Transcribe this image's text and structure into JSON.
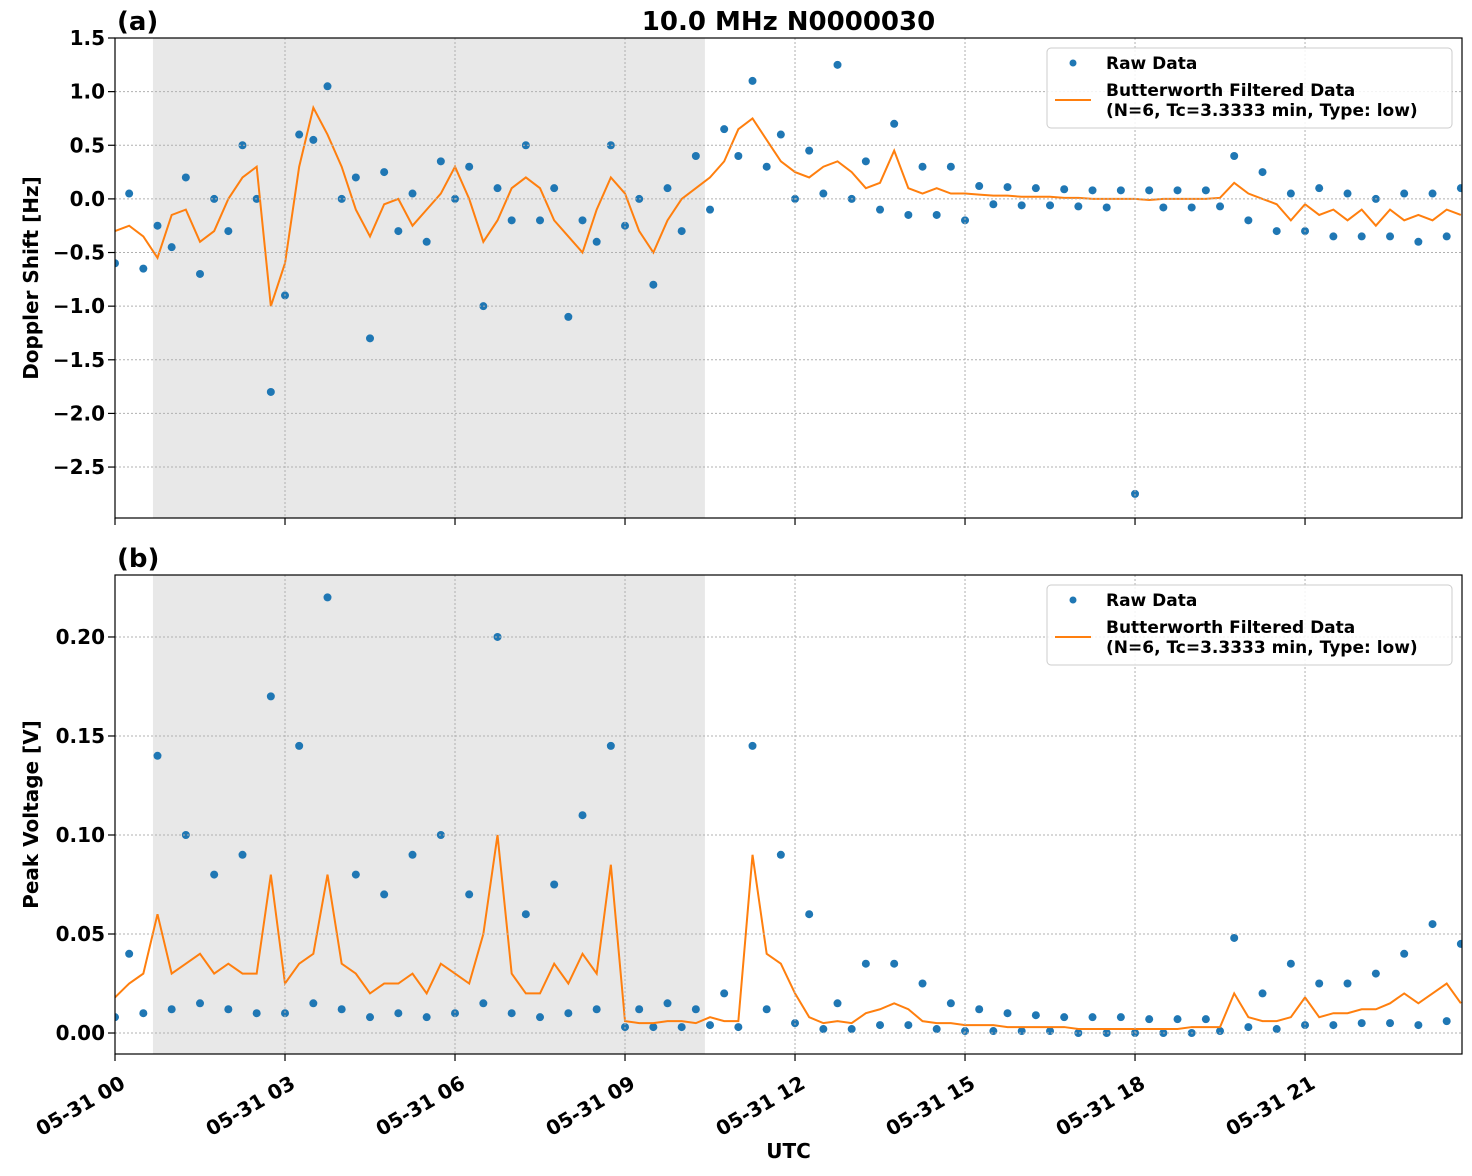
{
  "chart_data": [
    {
      "type": "line",
      "title": "10.0 MHz N0000030",
      "panel_label": "(a)",
      "ylabel": "Doppler Shift [Hz]",
      "x": [
        0,
        0.25,
        0.5,
        0.75,
        1,
        1.25,
        1.5,
        1.75,
        2,
        2.25,
        2.5,
        2.75,
        3,
        3.25,
        3.5,
        3.75,
        4,
        4.25,
        4.5,
        4.75,
        5,
        5.25,
        5.5,
        5.75,
        6,
        6.25,
        6.5,
        6.75,
        7,
        7.25,
        7.5,
        7.75,
        8,
        8.25,
        8.5,
        8.75,
        9,
        9.25,
        9.5,
        9.75,
        10,
        10.25,
        10.5,
        10.75,
        11,
        11.25,
        11.5,
        11.75,
        12,
        12.25,
        12.5,
        12.75,
        13,
        13.25,
        13.5,
        13.75,
        14,
        14.25,
        14.5,
        14.75,
        15,
        15.25,
        15.5,
        15.75,
        16,
        16.25,
        16.5,
        16.75,
        17,
        17.25,
        17.5,
        17.75,
        18,
        18.25,
        18.5,
        18.75,
        19,
        19.25,
        19.5,
        19.75,
        20,
        20.25,
        20.5,
        20.75,
        21,
        21.25,
        21.5,
        21.75,
        22,
        22.25,
        22.5,
        22.75,
        23,
        23.25,
        23.5,
        23.75
      ],
      "series": [
        {
          "name": "Raw Data",
          "mode": "markers",
          "color": "#1f77b4",
          "values": [
            -0.6,
            0.05,
            -0.65,
            -0.25,
            -0.45,
            0.2,
            -0.7,
            0.0,
            -0.3,
            0.5,
            0.0,
            -1.8,
            -0.9,
            0.6,
            0.55,
            1.05,
            0.0,
            0.2,
            -1.3,
            0.25,
            -0.3,
            0.05,
            -0.4,
            0.35,
            0.0,
            0.3,
            -1.0,
            0.1,
            -0.2,
            0.5,
            -0.2,
            0.1,
            -1.1,
            -0.2,
            -0.4,
            0.5,
            -0.25,
            0.0,
            -0.8,
            0.1,
            -0.3,
            0.4,
            -0.1,
            0.65,
            0.4,
            1.1,
            0.3,
            0.6,
            0.0,
            0.45,
            0.05,
            1.25,
            0.0,
            0.35,
            -0.1,
            0.7,
            -0.15,
            0.3,
            -0.15,
            0.3,
            -0.2,
            0.12,
            -0.05,
            0.11,
            -0.06,
            0.1,
            -0.06,
            0.09,
            -0.07,
            0.08,
            -0.08,
            0.08,
            -2.75,
            0.08,
            -0.08,
            0.08,
            -0.08,
            0.08,
            -0.07,
            0.4,
            -0.2,
            0.25,
            -0.3,
            0.05,
            -0.3,
            0.1,
            -0.35,
            0.05,
            -0.35,
            0.0,
            -0.35,
            0.05,
            -0.4,
            0.05,
            -0.35,
            0.1
          ]
        },
        {
          "name": "Butterworth Filtered Data\n(N=6, Tc=3.3333 min, Type: low)",
          "mode": "lines",
          "color": "#ff7f0e",
          "values": [
            -0.3,
            -0.25,
            -0.35,
            -0.55,
            -0.15,
            -0.1,
            -0.4,
            -0.3,
            0.0,
            0.2,
            0.3,
            -1.0,
            -0.6,
            0.3,
            0.85,
            0.6,
            0.3,
            -0.1,
            -0.35,
            -0.05,
            0.0,
            -0.25,
            -0.1,
            0.05,
            0.3,
            0.0,
            -0.4,
            -0.2,
            0.1,
            0.2,
            0.1,
            -0.2,
            -0.35,
            -0.5,
            -0.1,
            0.2,
            0.05,
            -0.3,
            -0.5,
            -0.2,
            0.0,
            0.1,
            0.2,
            0.35,
            0.65,
            0.75,
            0.55,
            0.35,
            0.25,
            0.2,
            0.3,
            0.35,
            0.25,
            0.1,
            0.15,
            0.45,
            0.1,
            0.05,
            0.1,
            0.05,
            0.05,
            0.04,
            0.03,
            0.03,
            0.02,
            0.02,
            0.02,
            0.01,
            0.01,
            0.0,
            0.0,
            0.0,
            0.0,
            -0.01,
            0.0,
            0.0,
            0.0,
            0.0,
            0.01,
            0.15,
            0.05,
            0.0,
            -0.05,
            -0.2,
            -0.05,
            -0.15,
            -0.1,
            -0.2,
            -0.1,
            -0.25,
            -0.1,
            -0.2,
            -0.15,
            -0.2,
            -0.1,
            -0.15
          ]
        }
      ],
      "shade": {
        "x": [
          0.67,
          10.41
        ],
        "color": "#e8e8e8"
      },
      "xlim": [
        0,
        23.77
      ],
      "xticks": [
        0,
        3,
        6,
        9,
        12,
        15,
        18,
        21
      ],
      "ylim": [
        -2.975,
        1.5
      ],
      "yticks": [
        1.5,
        {
          "value": 1.0,
          "label": "1.0"
        },
        0.5,
        {
          "value": 0.0,
          "label": "0.0"
        },
        {
          "value": -0.5,
          "label": "−0.5"
        },
        {
          "value": -1.0,
          "label": "−1.0"
        },
        {
          "value": -1.5,
          "label": "−1.5"
        },
        {
          "value": -2.0,
          "label": "−2.0"
        },
        {
          "value": -2.5,
          "label": "−2.5"
        }
      ],
      "grid": true,
      "legend": "upper right"
    },
    {
      "type": "line",
      "panel_label": "(b)",
      "ylabel": "Peak Voltage [V]",
      "xlabel": "UTC",
      "x": [
        0,
        0.25,
        0.5,
        0.75,
        1,
        1.25,
        1.5,
        1.75,
        2,
        2.25,
        2.5,
        2.75,
        3,
        3.25,
        3.5,
        3.75,
        4,
        4.25,
        4.5,
        4.75,
        5,
        5.25,
        5.5,
        5.75,
        6,
        6.25,
        6.5,
        6.75,
        7,
        7.25,
        7.5,
        7.75,
        8,
        8.25,
        8.5,
        8.75,
        9,
        9.25,
        9.5,
        9.75,
        10,
        10.25,
        10.5,
        10.75,
        11,
        11.25,
        11.5,
        11.75,
        12,
        12.25,
        12.5,
        12.75,
        13,
        13.25,
        13.5,
        13.75,
        14,
        14.25,
        14.5,
        14.75,
        15,
        15.25,
        15.5,
        15.75,
        16,
        16.25,
        16.5,
        16.75,
        17,
        17.25,
        17.5,
        17.75,
        18,
        18.25,
        18.5,
        18.75,
        19,
        19.25,
        19.5,
        19.75,
        20,
        20.25,
        20.5,
        20.75,
        21,
        21.25,
        21.5,
        21.75,
        22,
        22.25,
        22.5,
        22.75,
        23,
        23.25,
        23.5,
        23.75
      ],
      "series": [
        {
          "name": "Raw Data",
          "mode": "markers",
          "color": "#1f77b4",
          "values": [
            0.008,
            0.04,
            0.01,
            0.14,
            0.012,
            0.1,
            0.015,
            0.08,
            0.012,
            0.09,
            0.01,
            0.17,
            0.01,
            0.145,
            0.015,
            0.22,
            0.012,
            0.08,
            0.008,
            0.07,
            0.01,
            0.09,
            0.008,
            0.1,
            0.01,
            0.07,
            0.015,
            0.2,
            0.01,
            0.06,
            0.008,
            0.075,
            0.01,
            0.11,
            0.012,
            0.145,
            0.003,
            0.012,
            0.003,
            0.015,
            0.003,
            0.012,
            0.004,
            0.02,
            0.003,
            0.145,
            0.012,
            0.09,
            0.005,
            0.06,
            0.002,
            0.015,
            0.002,
            0.035,
            0.004,
            0.035,
            0.004,
            0.025,
            0.002,
            0.015,
            0.001,
            0.012,
            0.001,
            0.01,
            0.001,
            0.009,
            0.001,
            0.008,
            0.0,
            0.008,
            0.0,
            0.008,
            0.0,
            0.007,
            0.0,
            0.007,
            0.0,
            0.007,
            0.001,
            0.048,
            0.003,
            0.02,
            0.002,
            0.035,
            0.004,
            0.025,
            0.004,
            0.025,
            0.005,
            0.03,
            0.005,
            0.04,
            0.004,
            0.055,
            0.006,
            0.045
          ]
        },
        {
          "name": "Butterworth Filtered Data\n(N=6, Tc=3.3333 min, Type: low)",
          "mode": "lines",
          "color": "#ff7f0e",
          "values": [
            0.018,
            0.025,
            0.03,
            0.06,
            0.03,
            0.035,
            0.04,
            0.03,
            0.035,
            0.03,
            0.03,
            0.08,
            0.025,
            0.035,
            0.04,
            0.08,
            0.035,
            0.03,
            0.02,
            0.025,
            0.025,
            0.03,
            0.02,
            0.035,
            0.03,
            0.025,
            0.05,
            0.1,
            0.03,
            0.02,
            0.02,
            0.035,
            0.025,
            0.04,
            0.03,
            0.085,
            0.006,
            0.005,
            0.005,
            0.006,
            0.006,
            0.005,
            0.008,
            0.006,
            0.006,
            0.09,
            0.04,
            0.035,
            0.02,
            0.008,
            0.005,
            0.006,
            0.005,
            0.01,
            0.012,
            0.015,
            0.012,
            0.006,
            0.005,
            0.005,
            0.004,
            0.004,
            0.004,
            0.003,
            0.003,
            0.003,
            0.003,
            0.003,
            0.002,
            0.002,
            0.002,
            0.002,
            0.002,
            0.002,
            0.002,
            0.002,
            0.003,
            0.003,
            0.003,
            0.02,
            0.008,
            0.006,
            0.006,
            0.008,
            0.018,
            0.008,
            0.01,
            0.01,
            0.012,
            0.012,
            0.015,
            0.02,
            0.015,
            0.02,
            0.025,
            0.015
          ]
        }
      ],
      "shade": {
        "x": [
          0.67,
          10.41
        ],
        "color": "#e8e8e8"
      },
      "xlim": [
        0,
        23.77
      ],
      "xticks": [
        {
          "value": 0,
          "label": "05-31 00"
        },
        {
          "value": 3,
          "label": "05-31 03"
        },
        {
          "value": 6,
          "label": "05-31 06"
        },
        {
          "value": 9,
          "label": "05-31 09"
        },
        {
          "value": 12,
          "label": "05-31 12"
        },
        {
          "value": 15,
          "label": "05-31 15"
        },
        {
          "value": 18,
          "label": "05-31 18"
        },
        {
          "value": 21,
          "label": "05-31 21"
        }
      ],
      "ylim": [
        -0.0106,
        0.2313
      ],
      "yticks": [
        {
          "value": 0.0,
          "label": "0.00"
        },
        {
          "value": 0.05,
          "label": "0.05"
        },
        {
          "value": 0.1,
          "label": "0.10"
        },
        {
          "value": 0.15,
          "label": "0.15"
        },
        {
          "value": 0.2,
          "label": "0.20"
        }
      ],
      "grid": true,
      "legend": "upper right"
    }
  ]
}
